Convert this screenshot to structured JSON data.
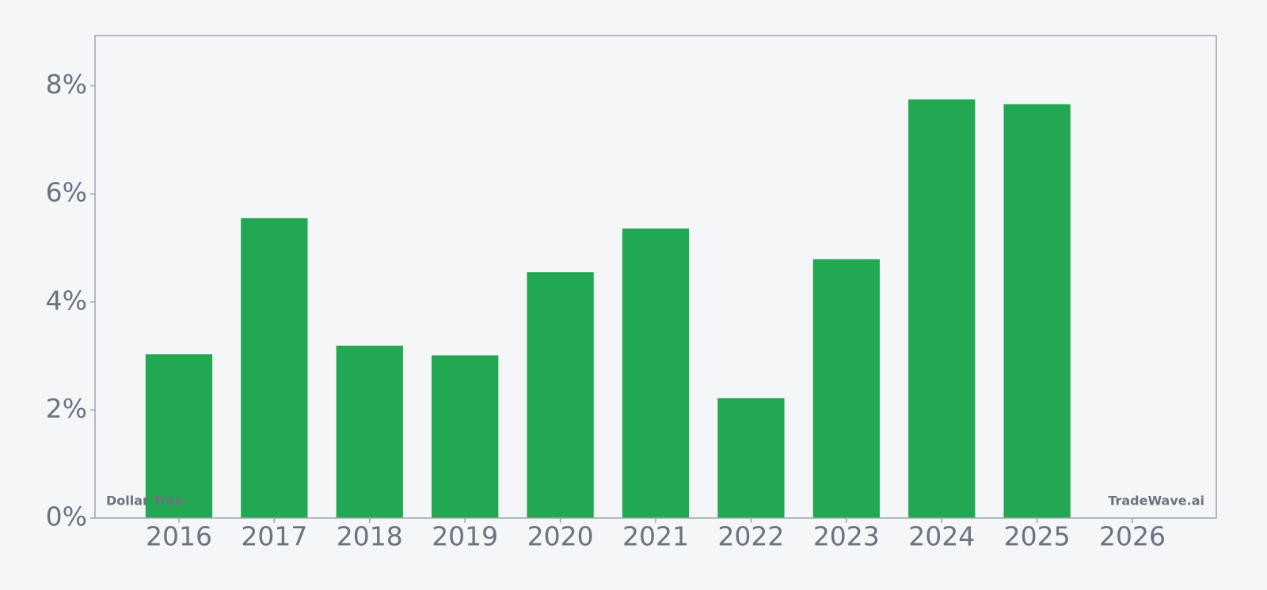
{
  "chart_data": {
    "type": "bar",
    "categories": [
      "2016",
      "2017",
      "2018",
      "2019",
      "2020",
      "2021",
      "2022",
      "2023",
      "2024",
      "2025",
      "2026"
    ],
    "values": [
      3.03,
      5.55,
      3.19,
      3.01,
      4.55,
      5.36,
      2.22,
      4.79,
      7.75,
      7.66,
      null
    ],
    "color": "#22a752",
    "ylim": [
      0,
      8.93
    ],
    "yticks": [
      {
        "value": 0,
        "label": "0%"
      },
      {
        "value": 2,
        "label": "2%"
      },
      {
        "value": 4,
        "label": "4%"
      },
      {
        "value": 6,
        "label": "6%"
      },
      {
        "value": 8,
        "label": "8%"
      }
    ],
    "grid": false,
    "annotations": [
      "Dollar Tree",
      "TradeWave.ai"
    ]
  }
}
